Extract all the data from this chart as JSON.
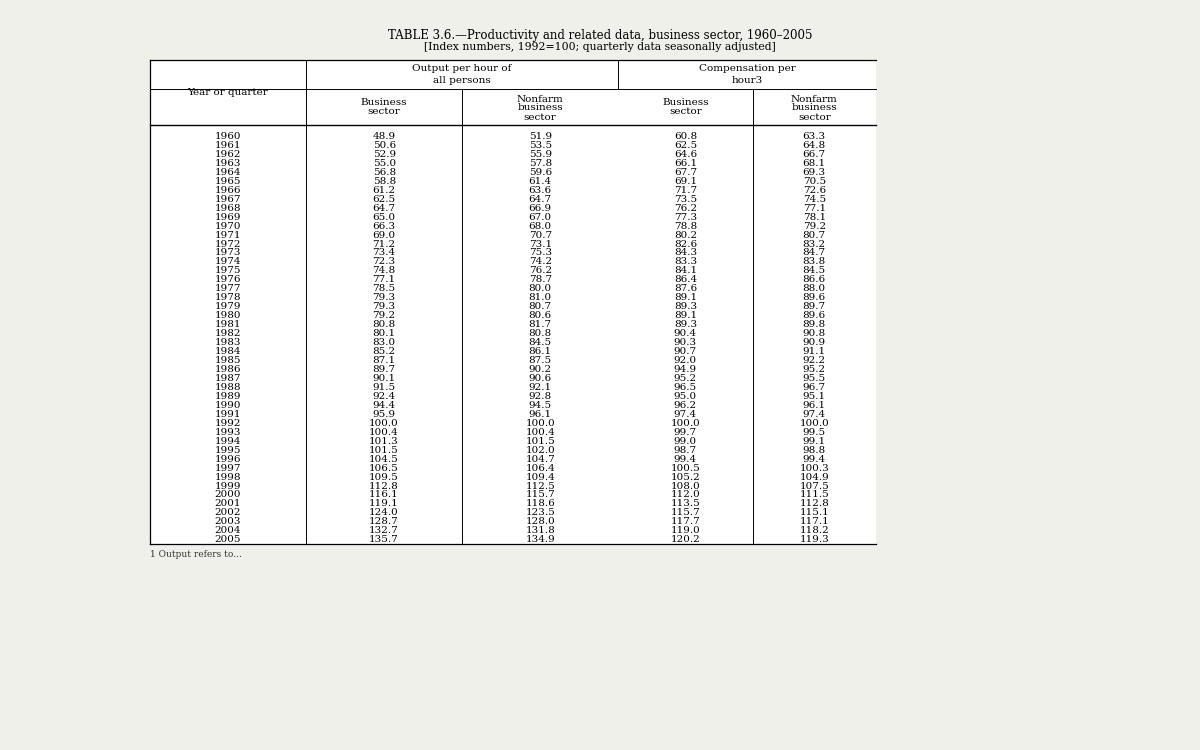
{
  "title": "TABLE 3.6.—Productivity and related data, business sector, 1960–2005",
  "subtitle": "[Index numbers, 1992=100; quarterly data seasonally adjusted]",
  "years": [
    1960,
    1961,
    1962,
    1963,
    1964,
    1965,
    1966,
    1967,
    1968,
    1969,
    1970,
    1971,
    1972,
    1973,
    1974,
    1975,
    1976,
    1977,
    1978,
    1979,
    1980,
    1981,
    1982,
    1983,
    1984,
    1985,
    1986,
    1987,
    1988,
    1989,
    1990,
    1991,
    1992,
    1993,
    1994,
    1995,
    1996,
    1997,
    1998,
    1999,
    2000,
    2001,
    2002,
    2003,
    2004,
    2005
  ],
  "output_business": [
    48.9,
    50.6,
    52.9,
    55.0,
    56.8,
    58.8,
    61.2,
    62.5,
    64.7,
    65.0,
    66.3,
    69.0,
    71.2,
    73.4,
    72.3,
    74.8,
    77.1,
    78.5,
    79.3,
    79.3,
    79.2,
    80.8,
    80.1,
    83.0,
    85.2,
    87.1,
    89.7,
    90.1,
    91.5,
    92.4,
    94.4,
    95.9,
    100.0,
    100.4,
    101.3,
    101.5,
    104.5,
    106.5,
    109.5,
    112.8,
    116.1,
    119.1,
    124.0,
    128.7,
    132.7,
    135.7
  ],
  "output_nonfarm": [
    51.9,
    53.5,
    55.9,
    57.8,
    59.6,
    61.4,
    63.6,
    64.7,
    66.9,
    67.0,
    68.0,
    70.7,
    73.1,
    75.3,
    74.2,
    76.2,
    78.7,
    80.0,
    81.0,
    80.7,
    80.6,
    81.7,
    80.8,
    84.5,
    86.1,
    87.5,
    90.2,
    90.6,
    92.1,
    92.8,
    94.5,
    96.1,
    100.0,
    100.4,
    101.5,
    102.0,
    104.7,
    106.4,
    109.4,
    112.5,
    115.7,
    118.6,
    123.5,
    128.0,
    131.8,
    134.9
  ],
  "comp_business": [
    60.8,
    62.5,
    64.6,
    66.1,
    67.7,
    69.1,
    71.7,
    73.5,
    76.2,
    77.3,
    78.8,
    80.2,
    82.6,
    84.3,
    83.3,
    84.1,
    86.4,
    87.6,
    89.1,
    89.3,
    89.1,
    89.3,
    90.4,
    90.3,
    90.7,
    92.0,
    94.9,
    95.2,
    96.5,
    95.0,
    96.2,
    97.4,
    100.0,
    99.7,
    99.0,
    98.7,
    99.4,
    100.5,
    105.2,
    108.0,
    112.0,
    113.5,
    115.7,
    117.7,
    119.0,
    120.2
  ],
  "comp_nonfarm": [
    63.3,
    64.8,
    66.7,
    68.1,
    69.3,
    70.5,
    72.6,
    74.5,
    77.1,
    78.1,
    79.2,
    80.7,
    83.2,
    84.7,
    83.8,
    84.5,
    86.6,
    88.0,
    89.6,
    89.7,
    89.6,
    89.8,
    90.8,
    90.9,
    91.1,
    92.2,
    95.2,
    95.5,
    96.7,
    95.1,
    96.1,
    97.4,
    100.0,
    99.5,
    99.1,
    98.8,
    99.4,
    100.3,
    104.9,
    107.5,
    111.5,
    112.8,
    115.1,
    117.1,
    118.2,
    119.3
  ],
  "bg_color": "#f0f0eb",
  "footnote": "1 Output refers to..."
}
